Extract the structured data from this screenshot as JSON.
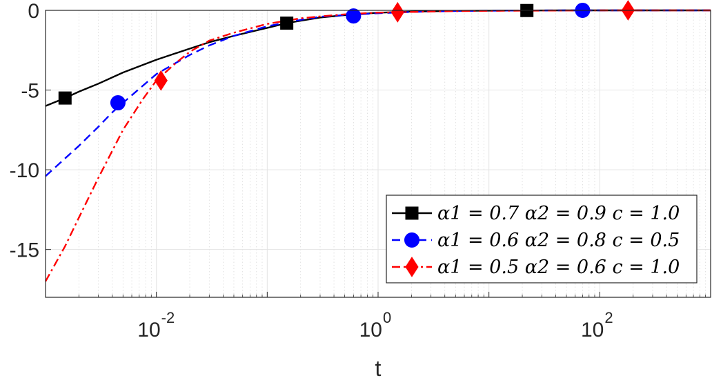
{
  "chart_data": {
    "type": "line",
    "x_scale": "log",
    "xlim": [
      0.001,
      1000
    ],
    "ylim": [
      -18,
      0
    ],
    "xlabel": "t",
    "ylabel": "",
    "x_ticks": [
      {
        "value": 0.01,
        "base": "10",
        "exp": "-2"
      },
      {
        "value": 1,
        "base": "10",
        "exp": "0"
      },
      {
        "value": 100,
        "base": "10",
        "exp": "2"
      }
    ],
    "y_ticks": [
      {
        "value": 0,
        "label": "0"
      },
      {
        "value": -5,
        "label": "-5"
      },
      {
        "value": -10,
        "label": "-10"
      },
      {
        "value": -15,
        "label": "-15"
      }
    ],
    "grid": true,
    "legend_position": "bottom-right",
    "series": [
      {
        "name": "α1 = 0.7 α2 = 0.9 c = 1.0",
        "color": "#000000",
        "style": "solid",
        "marker": "square",
        "x": [
          0.001,
          0.0015,
          0.002,
          0.003,
          0.005,
          0.01,
          0.02,
          0.03,
          0.05,
          0.1,
          0.15,
          0.2,
          0.3,
          0.5,
          1,
          2,
          5,
          10,
          20,
          50,
          100,
          200,
          500,
          1000
        ],
        "y": [
          -6.0,
          -5.5,
          -5.1,
          -4.6,
          -3.9,
          -3.1,
          -2.4,
          -2.0,
          -1.6,
          -1.1,
          -0.8,
          -0.65,
          -0.45,
          -0.3,
          -0.15,
          -0.08,
          -0.03,
          -0.02,
          -0.01,
          0,
          0,
          0,
          0,
          0
        ],
        "markers": [
          {
            "x": 0.0015,
            "y": -5.5
          },
          {
            "x": 0.15,
            "y": -0.8
          },
          {
            "x": 22,
            "y": -0.01
          }
        ]
      },
      {
        "name": "α1 = 0.6 α2 = 0.8 c = 0.5",
        "color": "#0000ff",
        "style": "dashed",
        "marker": "circle",
        "x": [
          0.001,
          0.002,
          0.003,
          0.004,
          0.005,
          0.01,
          0.02,
          0.03,
          0.05,
          0.1,
          0.2,
          0.3,
          0.5,
          1,
          2,
          5,
          10,
          20,
          50,
          100,
          200,
          500,
          1000
        ],
        "y": [
          -10.4,
          -8.5,
          -7.3,
          -6.4,
          -5.8,
          -4.0,
          -2.8,
          -2.2,
          -1.6,
          -1.0,
          -0.6,
          -0.4,
          -0.3,
          -0.18,
          -0.1,
          -0.04,
          -0.02,
          -0.01,
          0,
          0,
          0,
          0,
          0
        ],
        "markers": [
          {
            "x": 0.0045,
            "y": -5.8
          },
          {
            "x": 0.6,
            "y": -0.35
          },
          {
            "x": 70,
            "y": 0
          }
        ]
      },
      {
        "name": "α1 = 0.5 α2 = 0.6 c = 1.0",
        "color": "#ff0000",
        "style": "dashdot",
        "marker": "diamond",
        "x": [
          0.001,
          0.0015,
          0.002,
          0.003,
          0.005,
          0.0075,
          0.01,
          0.015,
          0.02,
          0.03,
          0.05,
          0.1,
          0.2,
          0.3,
          0.5,
          1,
          1.5,
          2,
          5,
          10,
          20,
          50,
          100,
          200,
          500,
          1000
        ],
        "y": [
          -17.0,
          -14.8,
          -13.0,
          -10.5,
          -7.5,
          -5.6,
          -4.4,
          -3.3,
          -2.6,
          -1.9,
          -1.4,
          -0.85,
          -0.5,
          -0.38,
          -0.25,
          -0.14,
          -0.12,
          -0.1,
          -0.05,
          -0.03,
          -0.02,
          -0.01,
          0,
          0,
          0,
          0
        ],
        "markers": [
          {
            "x": 0.011,
            "y": -4.4
          },
          {
            "x": 1.5,
            "y": -0.12
          },
          {
            "x": 180,
            "y": 0
          }
        ]
      }
    ]
  }
}
